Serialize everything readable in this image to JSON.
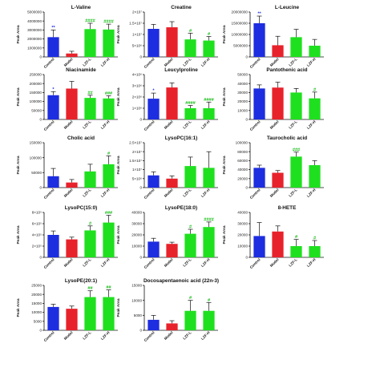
{
  "chart_data": [
    {
      "type": "bar",
      "title": "L-Valine",
      "ylabel": "Peak Area",
      "ylim": [
        0,
        5000000
      ],
      "ticks": [
        "0",
        "1000000",
        "2000000",
        "3000000",
        "4000000",
        "5000000"
      ],
      "categories": [
        "Control",
        "Model",
        "LZF-L",
        "LZF-H"
      ],
      "values": [
        2200000,
        380000,
        3100000,
        3050000
      ],
      "errors": [
        800000,
        250000,
        650000,
        600000
      ],
      "sig": [
        "**",
        "",
        "####",
        "####"
      ],
      "sig_colors": [
        "#1d2de0",
        "",
        "#1fbf1f",
        "#1fbf1f"
      ]
    },
    {
      "type": "bar",
      "title": "Creatine",
      "ylabel": "Peak Area",
      "ylim": [
        0,
        20000000.0
      ],
      "ticks": [
        "0",
        "5×10⁶",
        "1×10⁷",
        "1.5×10⁷",
        "2×10⁷"
      ],
      "categories": [
        "Control",
        "Model",
        "LZF-L",
        "LZF-H"
      ],
      "values": [
        12500000,
        13200000,
        7800000,
        7300000
      ],
      "errors": [
        2000000,
        2500000,
        2800000,
        1800000
      ],
      "sig": [
        "",
        "",
        "#",
        "#"
      ],
      "sig_colors": [
        "",
        "",
        "#1fbf1f",
        "#1fbf1f"
      ]
    },
    {
      "type": "bar",
      "title": "L-Leucine",
      "ylabel": "Peak Area",
      "ylim": [
        0,
        20000000
      ],
      "ticks": [
        "0",
        "5000000",
        "10000000",
        "15000000",
        "20000000"
      ],
      "categories": [
        "Control",
        "Model",
        "LZF-L",
        "LZF-H"
      ],
      "values": [
        15000000,
        5200000,
        8800000,
        5000000
      ],
      "errors": [
        3200000,
        4000000,
        3500000,
        2800000
      ],
      "sig": [
        "**",
        "",
        "",
        ""
      ],
      "sig_colors": [
        "#1d2de0",
        "",
        "",
        ""
      ]
    },
    {
      "type": "bar",
      "title": "Niacinamide",
      "ylabel": "Peak Area",
      "ylim": [
        0,
        250000
      ],
      "ticks": [
        "0",
        "50000",
        "100000",
        "150000",
        "200000",
        "250000"
      ],
      "categories": [
        "Control",
        "Model",
        "LZF-L",
        "LZF-H"
      ],
      "values": [
        135000,
        172000,
        120000,
        117000
      ],
      "errors": [
        20000,
        40000,
        15000,
        15000
      ],
      "sig": [
        "*",
        "",
        "##",
        "###"
      ],
      "sig_colors": [
        "#1d2de0",
        "",
        "#1fbf1f",
        "#1fbf1f"
      ]
    },
    {
      "type": "bar",
      "title": "Leucylproline",
      "ylabel": "Peak Area",
      "ylim": [
        0,
        4000000.0
      ],
      "ticks": [
        "0",
        "1×10⁶",
        "2×10⁶",
        "3×10⁶",
        "4×10⁶"
      ],
      "categories": [
        "Control",
        "Model",
        "LZF-L",
        "LZF-H"
      ],
      "values": [
        1850000,
        2850000,
        1000000,
        1000000
      ],
      "errors": [
        500000,
        400000,
        250000,
        550000
      ],
      "sig": [
        "*",
        "",
        "####",
        "####"
      ],
      "sig_colors": [
        "#1d2de0",
        "",
        "#1fbf1f",
        "#1fbf1f"
      ]
    },
    {
      "type": "bar",
      "title": "Pantothenic acid",
      "ylabel": "Peak Area",
      "ylim": [
        0,
        50000
      ],
      "ticks": [
        "0",
        "10000",
        "20000",
        "30000",
        "40000",
        "50000"
      ],
      "categories": [
        "Control",
        "Model",
        "LZF-L",
        "LZF-H"
      ],
      "values": [
        34500,
        35500,
        30000,
        23500
      ],
      "errors": [
        4000,
        6000,
        4500,
        7000
      ],
      "sig": [
        "",
        "",
        "",
        "#"
      ],
      "sig_colors": [
        "",
        "",
        "",
        "#1fbf1f"
      ]
    },
    {
      "type": "bar",
      "title": "Cholic acid",
      "ylabel": "Peak Area",
      "ylim": [
        0,
        150000
      ],
      "ticks": [
        "0",
        "50000",
        "100000",
        "150000"
      ],
      "categories": [
        "Control",
        "Model",
        "LZF-L",
        "LZF-H"
      ],
      "values": [
        38000,
        17000,
        54000,
        78000
      ],
      "errors": [
        26000,
        10000,
        24000,
        28000
      ],
      "sig": [
        "",
        "",
        "",
        "#"
      ],
      "sig_colors": [
        "",
        "",
        "",
        "#1fbf1f"
      ]
    },
    {
      "type": "bar",
      "title": "LysoPC(16:1)",
      "ylabel": "Peak Area",
      "ylim": [
        0,
        25000000.0
      ],
      "ticks": [
        "0",
        "5×10⁶",
        "1×10⁷",
        "1.5×10⁷",
        "2×10⁷",
        "2.5×10⁷"
      ],
      "categories": [
        "Control",
        "Model",
        "LZF-L",
        "LZF-H"
      ],
      "values": [
        6800000,
        5000000,
        12000000,
        11000000
      ],
      "errors": [
        2000000,
        1500000,
        5000000,
        9000000
      ],
      "sig": [
        "",
        "",
        "",
        ""
      ],
      "sig_colors": [
        "",
        "",
        "",
        ""
      ]
    },
    {
      "type": "bar",
      "title": "Taurocholic acid",
      "ylabel": "Peak Area",
      "ylim": [
        0,
        100000
      ],
      "ticks": [
        "0",
        "20000",
        "40000",
        "60000",
        "80000",
        "100000"
      ],
      "categories": [
        "Control",
        "Model",
        "LZF-L",
        "LZF-H"
      ],
      "values": [
        44000,
        33000,
        69000,
        50000
      ],
      "errors": [
        6000,
        5000,
        10000,
        10000
      ],
      "sig": [
        "",
        "",
        "###",
        ""
      ],
      "sig_colors": [
        "",
        "",
        "#1fbf1f",
        ""
      ]
    },
    {
      "type": "bar",
      "title": "LysoPC(15:0)",
      "ylabel": "Peak Area",
      "ylim": [
        0,
        800000.0
      ],
      "ticks": [
        "0",
        "2×10⁵",
        "4×10⁵",
        "6×10⁵",
        "8×10⁵"
      ],
      "categories": [
        "Control",
        "Model",
        "LZF-L",
        "LZF-H"
      ],
      "values": [
        400000,
        320000,
        480000,
        620000
      ],
      "errors": [
        70000,
        40000,
        80000,
        130000
      ],
      "sig": [
        "",
        "",
        "#",
        "###"
      ],
      "sig_colors": [
        "",
        "",
        "#1fbf1f",
        "#1fbf1f"
      ]
    },
    {
      "type": "bar",
      "title": "LysoPE(18:0)",
      "ylabel": "Peak Area",
      "ylim": [
        0,
        40000
      ],
      "ticks": [
        "0",
        "10000",
        "20000",
        "30000",
        "40000"
      ],
      "categories": [
        "Control",
        "Model",
        "LZF-L",
        "LZF-H"
      ],
      "values": [
        14000,
        12000,
        21000,
        27000
      ],
      "errors": [
        3000,
        1500,
        4000,
        4500
      ],
      "sig": [
        "",
        "",
        "#",
        "####"
      ],
      "sig_colors": [
        "",
        "",
        "#1fbf1f",
        "#1fbf1f"
      ]
    },
    {
      "type": "bar",
      "title": "8-HETE",
      "ylabel": "Peak Area",
      "ylim": [
        0,
        40000
      ],
      "ticks": [
        "0",
        "10000",
        "20000",
        "30000",
        "40000"
      ],
      "categories": [
        "Control",
        "Model",
        "LZF-L",
        "LZF-H"
      ],
      "values": [
        19000,
        23000,
        10000,
        10000
      ],
      "errors": [
        12000,
        5000,
        6000,
        5000
      ],
      "sig": [
        "",
        "",
        "#",
        "#"
      ],
      "sig_colors": [
        "",
        "",
        "#1fbf1f",
        "#1fbf1f"
      ]
    },
    {
      "type": "bar",
      "title": "LysoPE(20:1)",
      "ylabel": "Peak Area",
      "ylim": [
        0,
        25000
      ],
      "ticks": [
        "0",
        "5000",
        "10000",
        "15000",
        "20000",
        "25000"
      ],
      "categories": [
        "Control",
        "Model",
        "LZF-L",
        "LZF-H"
      ],
      "values": [
        13000,
        12000,
        18500,
        18500
      ],
      "errors": [
        1500,
        1500,
        3500,
        4000
      ],
      "sig": [
        "",
        "",
        "##",
        "##"
      ],
      "sig_colors": [
        "",
        "",
        "#1fbf1f",
        "#1fbf1f"
      ]
    },
    {
      "type": "bar",
      "title": "Docosapentaenoic acid (22n-3)",
      "ylabel": "Peak Area",
      "ylim": [
        0,
        15000
      ],
      "ticks": [
        "0",
        "5000",
        "10000",
        "15000"
      ],
      "categories": [
        "Control",
        "Model",
        "LZF-L",
        "LZF-H"
      ],
      "values": [
        3500,
        2300,
        6500,
        6500
      ],
      "errors": [
        1500,
        900,
        3500,
        2800
      ],
      "sig": [
        "",
        "",
        "#",
        "#"
      ],
      "sig_colors": [
        "",
        "",
        "#1fbf1f",
        "#1fbf1f"
      ]
    }
  ],
  "colors": {
    "Control": "#1d2de0",
    "Model": "#e8222b",
    "LZF-L": "#1fe01f",
    "LZF-H": "#1fe01f"
  }
}
